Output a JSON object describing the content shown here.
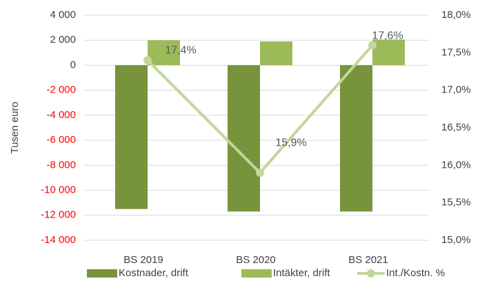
{
  "chart_data": {
    "type": "bar_line",
    "y_axis_label": "Tusen euro",
    "categories": [
      "BS 2019",
      "BS 2020",
      "BS 2021"
    ],
    "series": [
      {
        "name": "Kostnader, drift",
        "color": "#77933c",
        "type": "bar",
        "values": [
          -11500,
          -11700,
          -11700
        ]
      },
      {
        "name": "Intäkter, drift",
        "color": "#9bbb59",
        "type": "bar",
        "values": [
          2000,
          1900,
          2050
        ]
      },
      {
        "name": "Int./Kostn. %",
        "color": "#c3d69b",
        "type": "line",
        "axis": "y2",
        "values": [
          17.4,
          15.9,
          17.6
        ],
        "value_labels": [
          "17,4%",
          "15,9%",
          "17,6%"
        ]
      }
    ],
    "ylim": [
      -14000,
      4000
    ],
    "yticks": [
      {
        "value": 4000,
        "label": "4 000"
      },
      {
        "value": 2000,
        "label": "2 000"
      },
      0,
      {
        "value": -2000,
        "label": "-2 000"
      },
      {
        "value": -4000,
        "label": "-4 000"
      },
      {
        "value": -6000,
        "label": "-6 000"
      },
      {
        "value": -8000,
        "label": "-8 000"
      },
      {
        "value": -10000,
        "label": "-10 000"
      },
      {
        "value": -12000,
        "label": "-12 000"
      },
      {
        "value": -14000,
        "label": "-14 000"
      }
    ],
    "negative_tick_color": "#ff0000",
    "y2lim": [
      15,
      18
    ],
    "y2ticks": [
      {
        "value": 15,
        "label": "15,0%"
      },
      {
        "value": 15.5,
        "label": "15,5%"
      },
      {
        "value": 16,
        "label": "16,0%"
      },
      {
        "value": 16.5,
        "label": "16,5%"
      },
      {
        "value": 17,
        "label": "17,0%"
      },
      {
        "value": 17.5,
        "label": "17,5%"
      },
      {
        "value": 18,
        "label": "18,0%"
      }
    ],
    "grid": true,
    "legend": "bottom"
  }
}
